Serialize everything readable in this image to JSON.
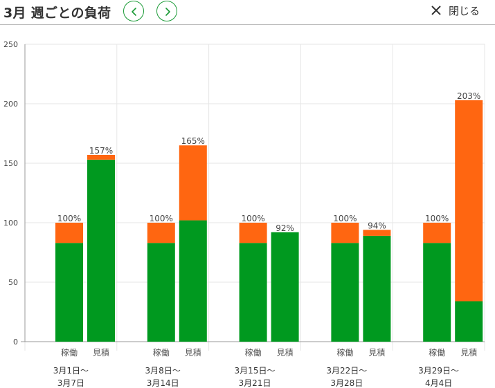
{
  "header": {
    "title": "3月 週ごとの負荷",
    "close_label": "閉じる",
    "icons": {
      "prev": "chevron-left-icon",
      "next": "chevron-right-icon",
      "close": "close-icon"
    }
  },
  "colors": {
    "actual": "#00991f",
    "excess": "#ff6611",
    "accent": "#1a9a36",
    "grid": "#e6e6e6",
    "axis": "#999999"
  },
  "chart_data": {
    "type": "bar",
    "stacked": true,
    "ylim": [
      0,
      250
    ],
    "yticks": [
      0,
      50,
      100,
      150,
      200,
      250
    ],
    "grid": true,
    "legend": "none",
    "groups": [
      {
        "week_line1": "3月1日〜",
        "week_line2": "3月7日",
        "bars": [
          {
            "label": "稼働",
            "base": 83,
            "top": 17,
            "total_label": "100%"
          },
          {
            "label": "見積",
            "base": 153,
            "top": 4,
            "total_label": "157%"
          }
        ]
      },
      {
        "week_line1": "3月8日〜",
        "week_line2": "3月14日",
        "bars": [
          {
            "label": "稼働",
            "base": 83,
            "top": 17,
            "total_label": "100%"
          },
          {
            "label": "見積",
            "base": 102,
            "top": 63,
            "total_label": "165%"
          }
        ]
      },
      {
        "week_line1": "3月15日〜",
        "week_line2": "3月21日",
        "bars": [
          {
            "label": "稼働",
            "base": 83,
            "top": 17,
            "total_label": "100%"
          },
          {
            "label": "見積",
            "base": 92,
            "top": 0,
            "total_label": "92%"
          }
        ]
      },
      {
        "week_line1": "3月22日〜",
        "week_line2": "3月28日",
        "bars": [
          {
            "label": "稼働",
            "base": 83,
            "top": 17,
            "total_label": "100%"
          },
          {
            "label": "見積",
            "base": 89,
            "top": 5,
            "total_label": "94%"
          }
        ]
      },
      {
        "week_line1": "3月29日〜",
        "week_line2": "4月4日",
        "bars": [
          {
            "label": "稼働",
            "base": 83,
            "top": 17,
            "total_label": "100%"
          },
          {
            "label": "見積",
            "base": 34,
            "top": 169,
            "total_label": "203%"
          }
        ]
      }
    ]
  }
}
